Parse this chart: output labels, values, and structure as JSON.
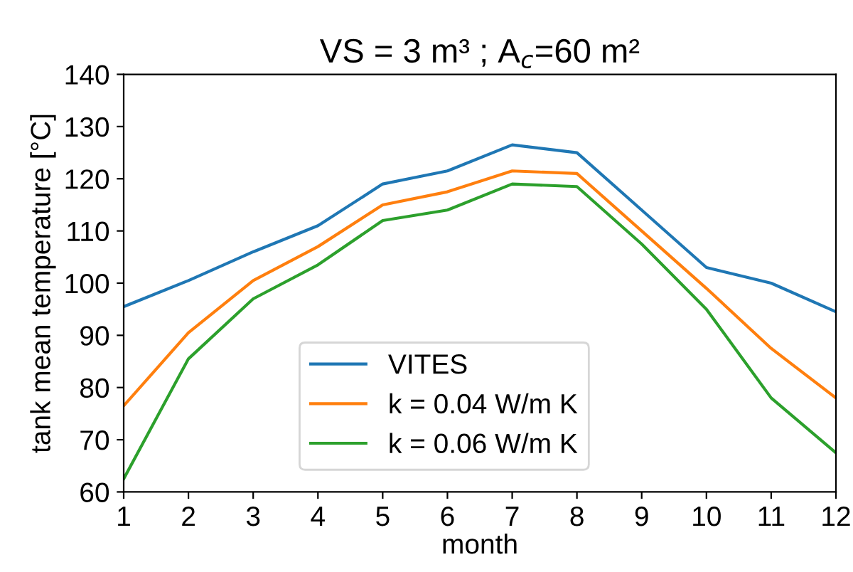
{
  "chart_data": {
    "type": "line",
    "title": "VS = 3 m³ ; A$_{c}$=60 m²",
    "xlabel": "month",
    "ylabel": "tank mean temperature [°C]",
    "x": [
      1,
      2,
      3,
      4,
      5,
      6,
      7,
      8,
      9,
      10,
      11,
      12
    ],
    "series": [
      {
        "name": "VITES",
        "color": "#1f77b4",
        "values": [
          95.5,
          100.5,
          106,
          111,
          119,
          121.5,
          126.5,
          125,
          114,
          103,
          100,
          94.5
        ]
      },
      {
        "name": "k = 0.04 W/m K",
        "color": "#ff7f0e",
        "values": [
          76.5,
          90.5,
          100.5,
          107,
          115,
          117.5,
          121.5,
          121,
          110,
          99,
          87.5,
          78
        ]
      },
      {
        "name": "k = 0.06 W/m K",
        "color": "#2ca02c",
        "values": [
          62.5,
          85.5,
          97,
          103.5,
          112,
          114,
          119,
          118.5,
          107.5,
          95,
          78,
          67.5
        ]
      }
    ],
    "xlim": [
      1,
      12
    ],
    "xticks": [
      1,
      2,
      3,
      4,
      5,
      6,
      7,
      8,
      9,
      10,
      11,
      12
    ],
    "ylim": [
      60,
      140
    ],
    "yticks": [
      60,
      70,
      80,
      90,
      100,
      110,
      120,
      130,
      140
    ],
    "grid": false,
    "legend": "bottom",
    "marker": "none",
    "line_style": "solid"
  }
}
